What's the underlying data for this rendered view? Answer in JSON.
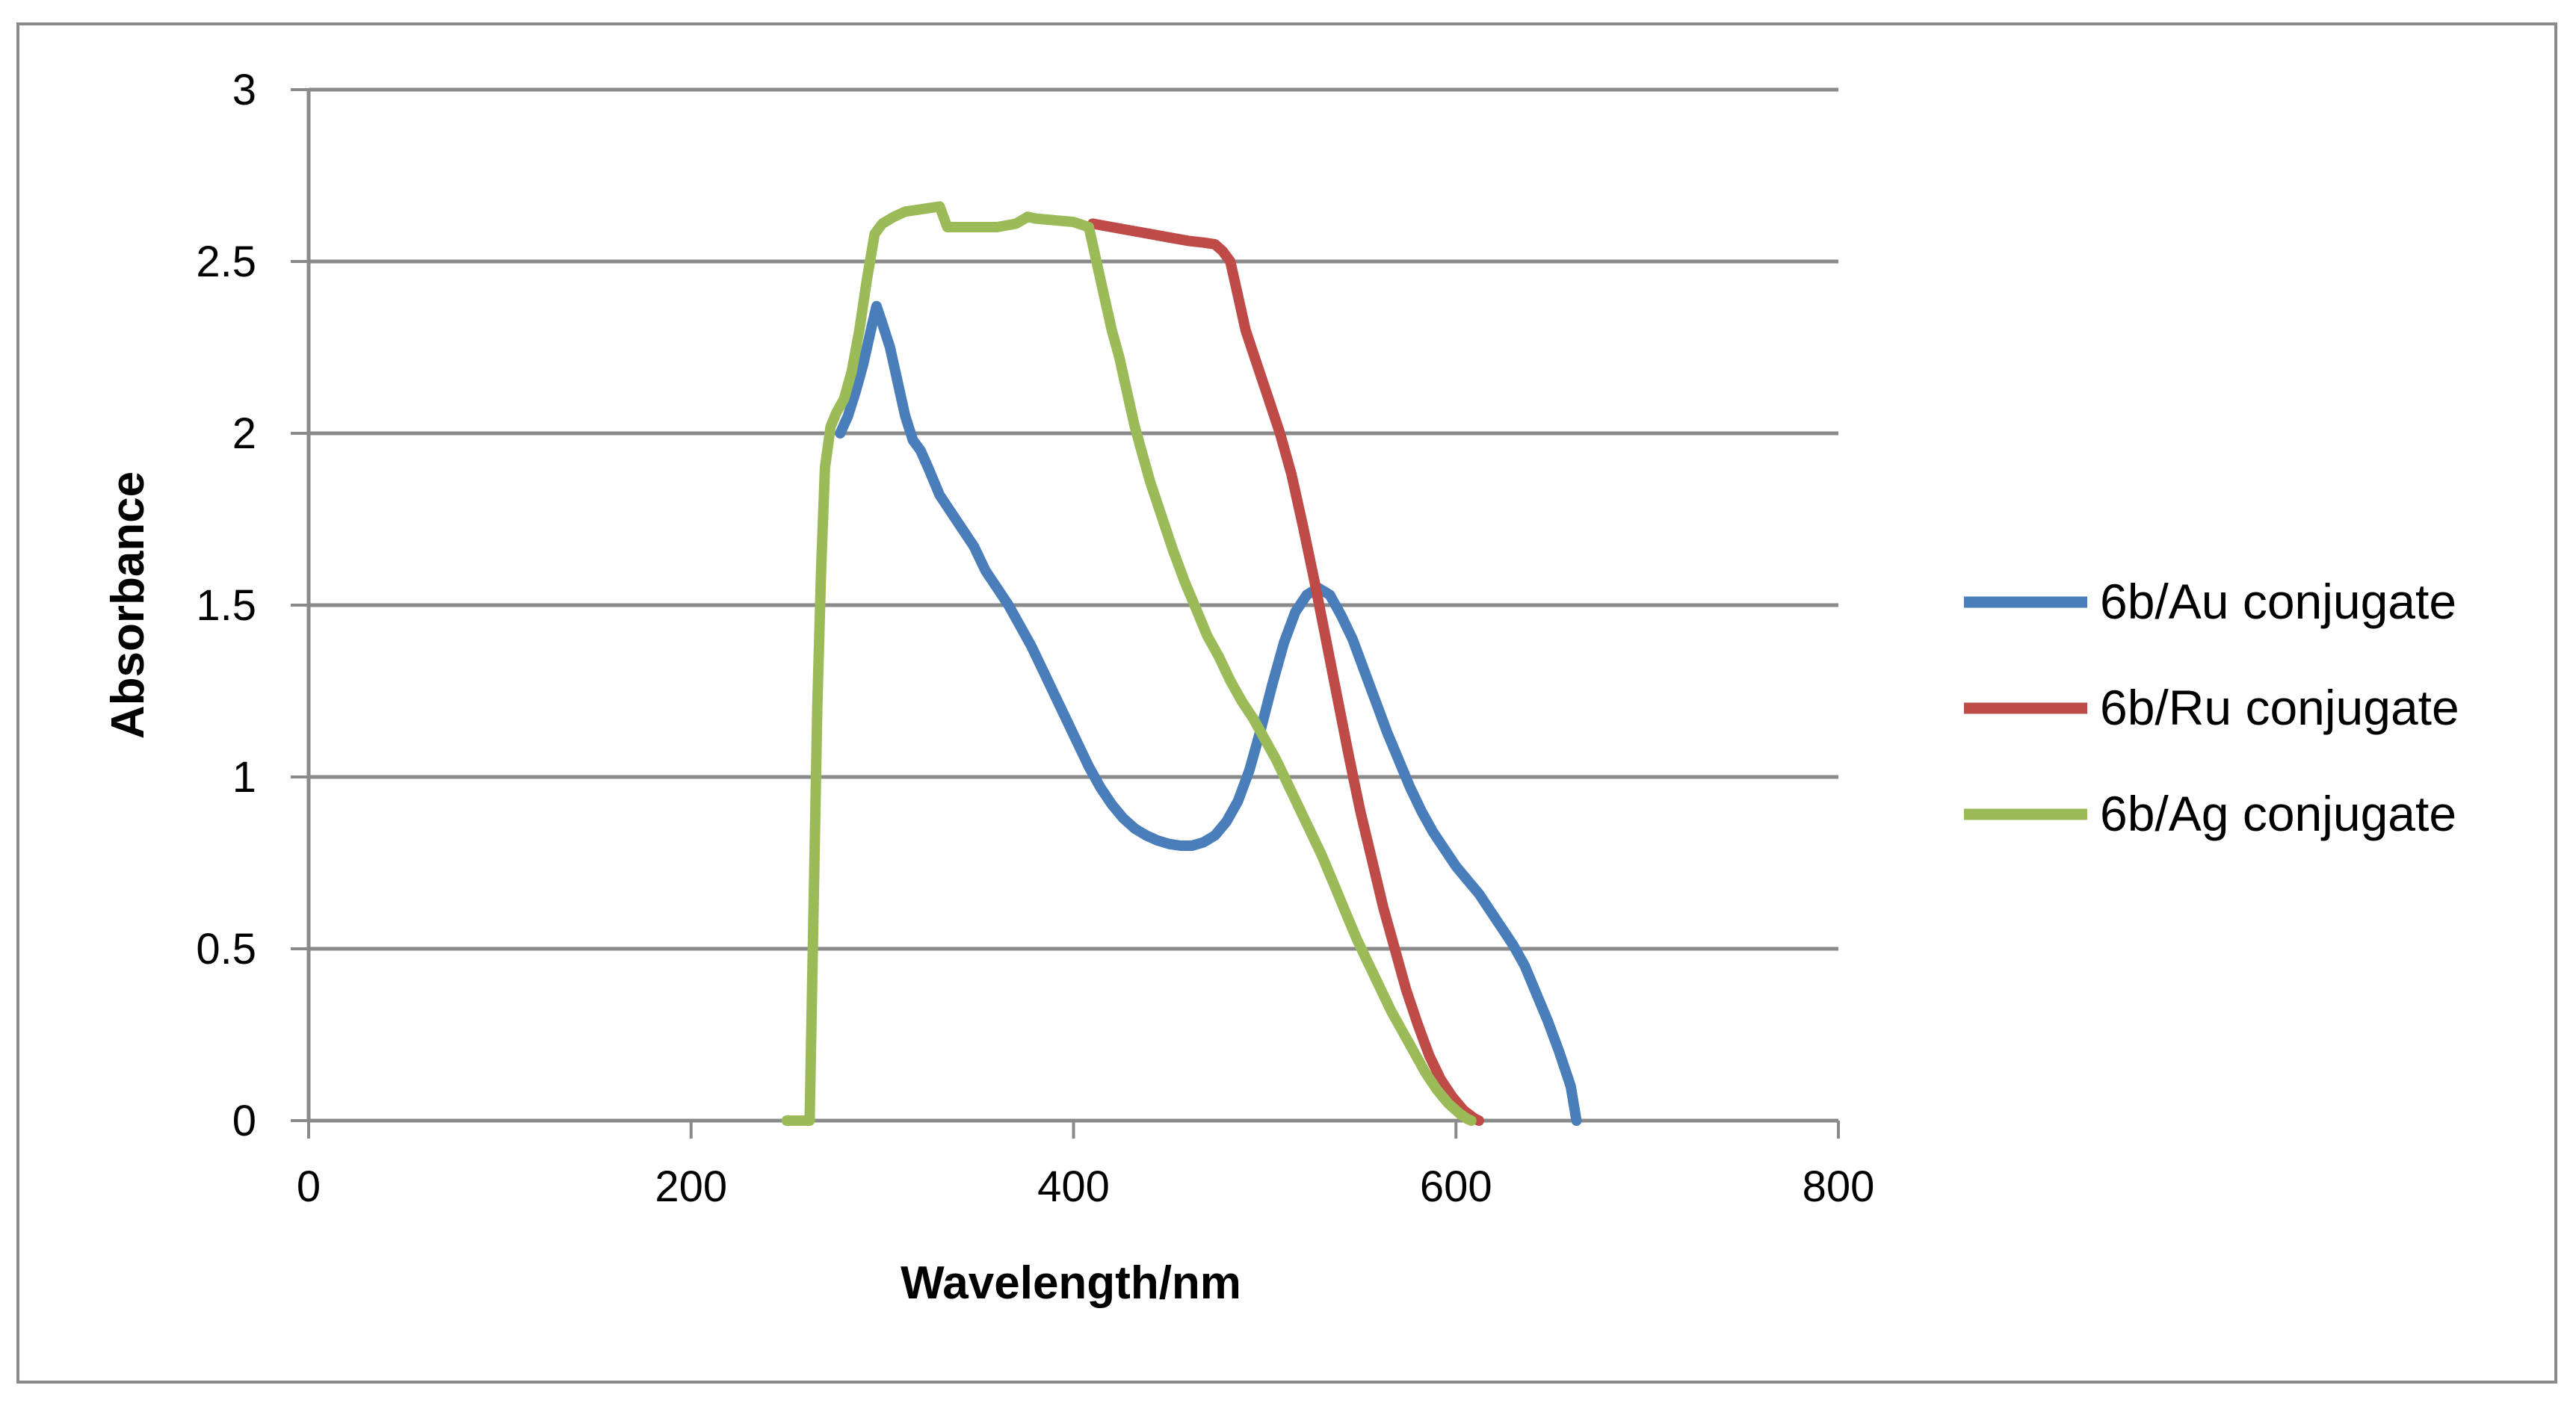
{
  "chart_data": {
    "type": "line",
    "title": "",
    "xlabel": "Wavelength/nm",
    "ylabel": "Absorbance",
    "xlim": [
      0,
      800
    ],
    "ylim": [
      0,
      3
    ],
    "xticks": [
      0,
      200,
      400,
      600,
      800
    ],
    "yticks": [
      0,
      0.5,
      1,
      1.5,
      2,
      2.5,
      3
    ],
    "ytick_labels": [
      "0",
      "0.5",
      "1",
      "1.5",
      "2",
      "2.5",
      "3"
    ],
    "grid": "horizontal",
    "legend_position": "right",
    "series": [
      {
        "name": "6b/Au conjugate",
        "color": "#4a7ebb",
        "x": [
          278,
          282,
          286,
          290,
          294,
          297,
          300,
          304,
          308,
          312,
          316,
          320,
          324,
          330,
          336,
          342,
          348,
          354,
          360,
          366,
          372,
          378,
          384,
          390,
          396,
          402,
          408,
          414,
          420,
          426,
          432,
          438,
          444,
          450,
          456,
          462,
          468,
          474,
          480,
          486,
          492,
          498,
          504,
          510,
          516,
          522,
          528,
          534,
          540,
          546,
          552,
          558,
          564,
          570,
          576,
          582,
          588,
          594,
          600,
          606,
          612,
          618,
          624,
          630,
          636,
          642,
          648,
          654,
          660,
          663
        ],
        "y": [
          2.0,
          2.05,
          2.12,
          2.2,
          2.3,
          2.37,
          2.32,
          2.25,
          2.15,
          2.05,
          1.98,
          1.95,
          1.9,
          1.82,
          1.77,
          1.72,
          1.67,
          1.6,
          1.55,
          1.5,
          1.44,
          1.38,
          1.31,
          1.24,
          1.17,
          1.1,
          1.03,
          0.97,
          0.92,
          0.88,
          0.85,
          0.83,
          0.815,
          0.805,
          0.8,
          0.8,
          0.81,
          0.83,
          0.87,
          0.93,
          1.02,
          1.14,
          1.27,
          1.39,
          1.48,
          1.53,
          1.55,
          1.53,
          1.47,
          1.4,
          1.31,
          1.22,
          1.13,
          1.05,
          0.97,
          0.9,
          0.84,
          0.79,
          0.74,
          0.7,
          0.66,
          0.61,
          0.56,
          0.51,
          0.45,
          0.37,
          0.29,
          0.2,
          0.1,
          0.0
        ]
      },
      {
        "name": "6b/Ru conjugate",
        "color": "#be4b48",
        "x": [
          410,
          420,
          430,
          440,
          450,
          460,
          468,
          474,
          478,
          482,
          486,
          490,
          496,
          502,
          508,
          514,
          520,
          526,
          532,
          538,
          544,
          550,
          556,
          562,
          568,
          574,
          580,
          586,
          592,
          598,
          604,
          610,
          612
        ],
        "y": [
          2.61,
          2.6,
          2.59,
          2.58,
          2.57,
          2.56,
          2.555,
          2.55,
          2.53,
          2.5,
          2.4,
          2.3,
          2.2,
          2.1,
          2.0,
          1.88,
          1.73,
          1.57,
          1.4,
          1.23,
          1.06,
          0.9,
          0.76,
          0.62,
          0.5,
          0.38,
          0.28,
          0.19,
          0.12,
          0.07,
          0.03,
          0.005,
          0.0
        ]
      },
      {
        "name": "6b/Ag conjugate",
        "color": "#9bbb59",
        "x": [
          250,
          262,
          264,
          266,
          268,
          270,
          273,
          276,
          280,
          284,
          288,
          292,
          296,
          300,
          306,
          312,
          318,
          324,
          330,
          334,
          340,
          350,
          360,
          370,
          376,
          380,
          390,
          400,
          408,
          412,
          416,
          420,
          424,
          428,
          432,
          436,
          440,
          446,
          452,
          458,
          464,
          470,
          476,
          482,
          488,
          494,
          500,
          506,
          512,
          518,
          524,
          530,
          536,
          542,
          548,
          554,
          560,
          566,
          572,
          578,
          584,
          590,
          596,
          602,
          606,
          608
        ],
        "y": [
          0.0,
          0.0,
          0.6,
          1.2,
          1.6,
          1.9,
          2.02,
          2.06,
          2.1,
          2.18,
          2.3,
          2.45,
          2.58,
          2.61,
          2.63,
          2.645,
          2.65,
          2.655,
          2.66,
          2.6,
          2.6,
          2.6,
          2.6,
          2.61,
          2.63,
          2.625,
          2.62,
          2.615,
          2.6,
          2.5,
          2.4,
          2.3,
          2.22,
          2.12,
          2.02,
          1.94,
          1.86,
          1.76,
          1.66,
          1.57,
          1.49,
          1.41,
          1.35,
          1.28,
          1.22,
          1.17,
          1.11,
          1.05,
          0.98,
          0.91,
          0.84,
          0.77,
          0.69,
          0.61,
          0.53,
          0.46,
          0.39,
          0.32,
          0.26,
          0.2,
          0.14,
          0.09,
          0.05,
          0.02,
          0.005,
          0.0
        ]
      }
    ]
  }
}
